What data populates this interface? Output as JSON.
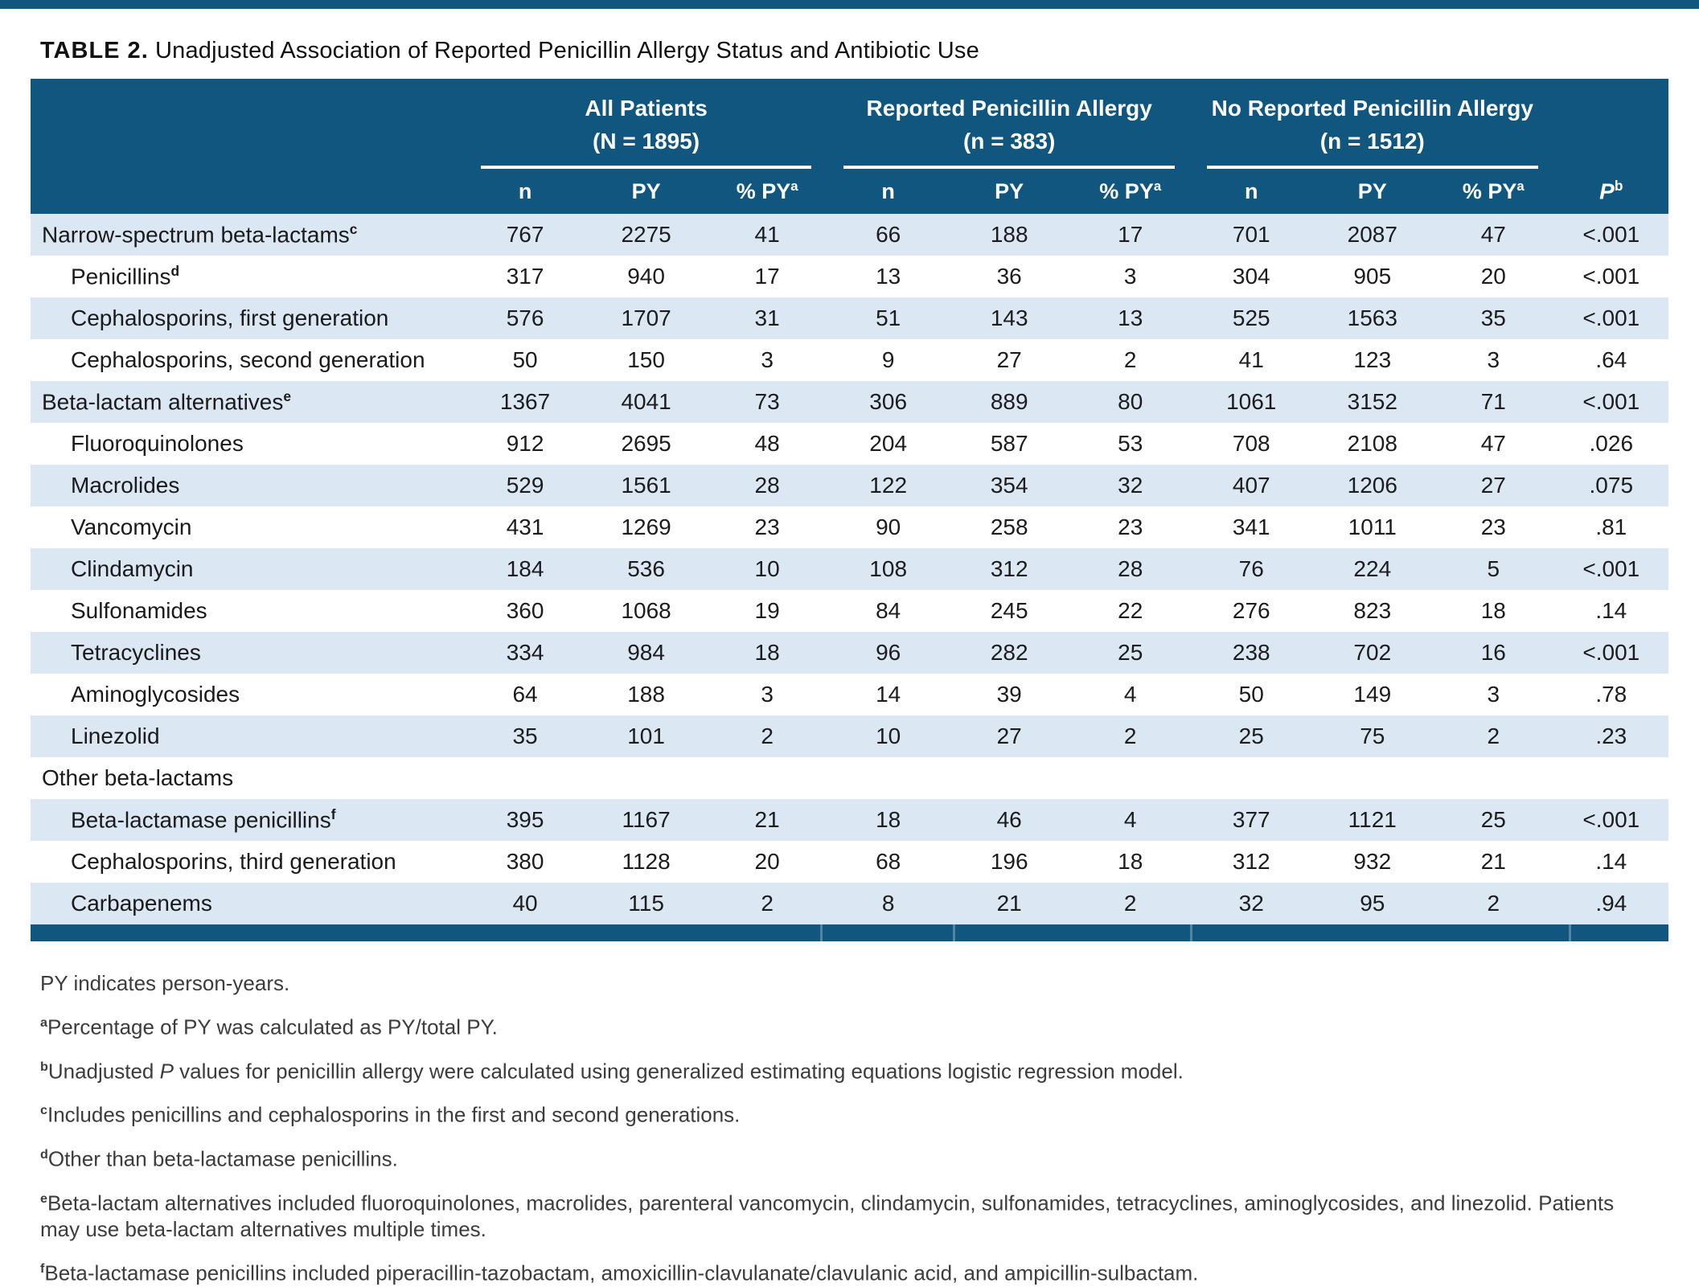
{
  "page": {
    "title_prefix": "TABLE 2.",
    "title": " Unadjusted Association of Reported Penicillin Allergy Status and Antibiotic Use"
  },
  "colors": {
    "header_bg": "#10567f",
    "top_bar": "#10567f",
    "row_alt_bg": "#dbe7f3",
    "header_text": "#ffffff",
    "footnote_text": "#3c3c3c"
  },
  "table": {
    "groups": [
      {
        "line1": "All Patients",
        "line2": "(N = 1895)"
      },
      {
        "line1": "Reported Penicillin Allergy",
        "line2": "(n = 383)"
      },
      {
        "line1": "No Reported Penicillin Allergy",
        "line2": "(n = 1512)"
      }
    ],
    "subheaders": {
      "n": "n",
      "py": "PY",
      "pct_py": "% PY",
      "pct_py_sup": "a",
      "p": "P",
      "p_sup": "b"
    },
    "rows": [
      {
        "label": "Narrow-spectrum beta-lactams",
        "sup": "c",
        "indent": false,
        "values": [
          "767",
          "2275",
          "41",
          "66",
          "188",
          "17",
          "701",
          "2087",
          "47",
          "<.001"
        ]
      },
      {
        "label": "Penicillins",
        "sup": "d",
        "indent": true,
        "values": [
          "317",
          "940",
          "17",
          "13",
          "36",
          "3",
          "304",
          "905",
          "20",
          "<.001"
        ]
      },
      {
        "label": "Cephalosporins, first generation",
        "sup": "",
        "indent": true,
        "values": [
          "576",
          "1707",
          "31",
          "51",
          "143",
          "13",
          "525",
          "1563",
          "35",
          "<.001"
        ]
      },
      {
        "label": "Cephalosporins, second generation",
        "sup": "",
        "indent": true,
        "values": [
          "50",
          "150",
          "3",
          "9",
          "27",
          "2",
          "41",
          "123",
          "3",
          ".64"
        ]
      },
      {
        "label": "Beta-lactam alternatives",
        "sup": "e",
        "indent": false,
        "values": [
          "1367",
          "4041",
          "73",
          "306",
          "889",
          "80",
          "1061",
          "3152",
          "71",
          "<.001"
        ]
      },
      {
        "label": "Fluoroquinolones",
        "sup": "",
        "indent": true,
        "values": [
          "912",
          "2695",
          "48",
          "204",
          "587",
          "53",
          "708",
          "2108",
          "47",
          ".026"
        ]
      },
      {
        "label": "Macrolides",
        "sup": "",
        "indent": true,
        "values": [
          "529",
          "1561",
          "28",
          "122",
          "354",
          "32",
          "407",
          "1206",
          "27",
          ".075"
        ]
      },
      {
        "label": "Vancomycin",
        "sup": "",
        "indent": true,
        "values": [
          "431",
          "1269",
          "23",
          "90",
          "258",
          "23",
          "341",
          "1011",
          "23",
          ".81"
        ]
      },
      {
        "label": "Clindamycin",
        "sup": "",
        "indent": true,
        "values": [
          "184",
          "536",
          "10",
          "108",
          "312",
          "28",
          "76",
          "224",
          "5",
          "<.001"
        ]
      },
      {
        "label": "Sulfonamides",
        "sup": "",
        "indent": true,
        "values": [
          "360",
          "1068",
          "19",
          "84",
          "245",
          "22",
          "276",
          "823",
          "18",
          ".14"
        ]
      },
      {
        "label": "Tetracyclines",
        "sup": "",
        "indent": true,
        "values": [
          "334",
          "984",
          "18",
          "96",
          "282",
          "25",
          "238",
          "702",
          "16",
          "<.001"
        ]
      },
      {
        "label": "Aminoglycosides",
        "sup": "",
        "indent": true,
        "values": [
          "64",
          "188",
          "3",
          "14",
          "39",
          "4",
          "50",
          "149",
          "3",
          ".78"
        ]
      },
      {
        "label": "Linezolid",
        "sup": "",
        "indent": true,
        "values": [
          "35",
          "101",
          "2",
          "10",
          "27",
          "2",
          "25",
          "75",
          "2",
          ".23"
        ]
      },
      {
        "label": "Other beta-lactams",
        "sup": "",
        "indent": false,
        "values": [
          "",
          "",
          "",
          "",
          "",
          "",
          "",
          "",
          "",
          ""
        ]
      },
      {
        "label": "Beta-lactamase penicillins",
        "sup": "f",
        "indent": true,
        "values": [
          "395",
          "1167",
          "21",
          "18",
          "46",
          "4",
          "377",
          "1121",
          "25",
          "<.001"
        ]
      },
      {
        "label": "Cephalosporins, third generation",
        "sup": "",
        "indent": true,
        "values": [
          "380",
          "1128",
          "20",
          "68",
          "196",
          "18",
          "312",
          "932",
          "21",
          ".14"
        ]
      },
      {
        "label": "Carbapenems",
        "sup": "",
        "indent": true,
        "values": [
          "40",
          "115",
          "2",
          "8",
          "21",
          "2",
          "32",
          "95",
          "2",
          ".94"
        ]
      }
    ]
  },
  "footnotes": [
    {
      "sup": "",
      "segments": [
        {
          "text": "PY indicates person-years.",
          "italic": false
        }
      ]
    },
    {
      "sup": "a",
      "segments": [
        {
          "text": "Percentage of PY was calculated as PY/total PY.",
          "italic": false
        }
      ]
    },
    {
      "sup": "b",
      "segments": [
        {
          "text": "Unadjusted ",
          "italic": false
        },
        {
          "text": "P",
          "italic": true
        },
        {
          "text": " values for penicillin allergy were calculated using generalized estimating equations logistic regression model.",
          "italic": false
        }
      ]
    },
    {
      "sup": "c",
      "segments": [
        {
          "text": "Includes penicillins and cephalosporins in the first and second generations.",
          "italic": false
        }
      ]
    },
    {
      "sup": "d",
      "segments": [
        {
          "text": "Other than beta-lactamase penicillins.",
          "italic": false
        }
      ]
    },
    {
      "sup": "e",
      "segments": [
        {
          "text": "Beta-lactam alternatives included fluoroquinolones, macrolides, parenteral vancomycin, clindamycin, sulfonamides, tetracyclines, aminoglycosides, and linezolid. Patients may use beta-lactam alternatives multiple times.",
          "italic": false
        }
      ]
    },
    {
      "sup": "f",
      "segments": [
        {
          "text": "Beta-lactamase penicillins included piperacillin-tazobactam, amoxicillin-clavulanate/clavulanic acid, and ampicillin-sulbactam.",
          "italic": false
        }
      ]
    }
  ]
}
